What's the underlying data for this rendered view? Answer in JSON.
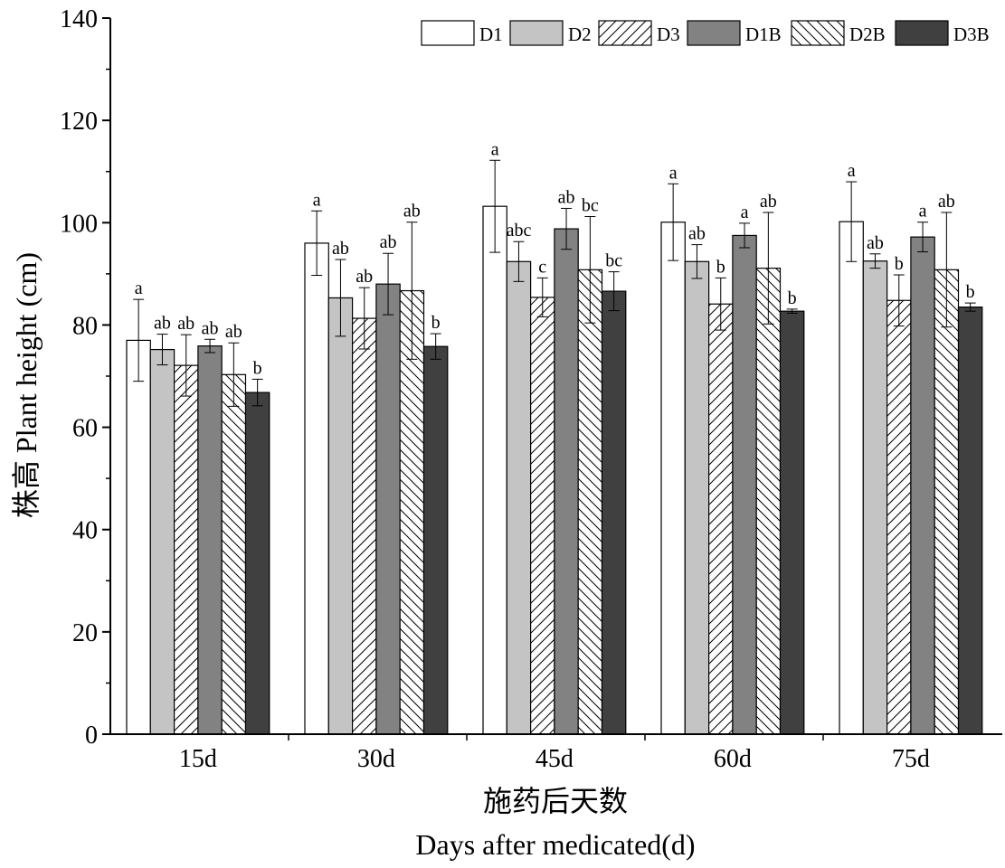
{
  "chart_data": {
    "type": "bar",
    "categories": [
      "15d",
      "30d",
      "45d",
      "60d",
      "75d"
    ],
    "ylabel": "株高 Plant height (cm)",
    "xlabel_cn": "施药后天数",
    "xlabel_en": "Days after medicated(d)",
    "ylim": [
      0,
      140
    ],
    "yticks": [
      0,
      20,
      40,
      60,
      80,
      100,
      120,
      140
    ],
    "legend_position": "top-right",
    "series": [
      {
        "name": "D1",
        "style": "white",
        "values": [
          77,
          96,
          103.2,
          100.1,
          100.2
        ],
        "errors": [
          8,
          6.3,
          9,
          7.5,
          7.8
        ],
        "letters": [
          "a",
          "a",
          "a",
          "a",
          "a"
        ]
      },
      {
        "name": "D2",
        "style": "lightgray",
        "values": [
          75.2,
          85.3,
          92.4,
          92.4,
          92.5
        ],
        "errors": [
          3,
          7.5,
          3.9,
          3.3,
          1.4
        ],
        "letters": [
          "ab",
          "ab",
          "abc",
          "ab",
          "ab"
        ]
      },
      {
        "name": "D3",
        "style": "hatch-forward",
        "values": [
          72.1,
          81.3,
          85.4,
          84.1,
          84.8
        ],
        "errors": [
          6,
          6,
          3.8,
          5.1,
          5
        ],
        "letters": [
          "ab",
          "ab",
          "c",
          "b",
          "b"
        ]
      },
      {
        "name": "D1B",
        "style": "gray",
        "values": [
          75.9,
          88,
          98.8,
          97.5,
          97.2
        ],
        "errors": [
          1.3,
          6,
          4,
          2.4,
          2.9
        ],
        "letters": [
          "ab",
          "ab",
          "ab",
          "a",
          "a"
        ]
      },
      {
        "name": "D2B",
        "style": "hatch-back",
        "values": [
          70.3,
          86.7,
          90.8,
          91.1,
          90.8
        ],
        "errors": [
          6.2,
          13.4,
          10.4,
          10.9,
          11.2
        ],
        "letters": [
          "ab",
          "ab",
          "bc",
          "ab",
          "ab"
        ]
      },
      {
        "name": "D3B",
        "style": "dark",
        "values": [
          66.8,
          75.8,
          86.6,
          82.7,
          83.5
        ],
        "errors": [
          2.6,
          2.5,
          3.8,
          0.4,
          0.8
        ],
        "letters": [
          "b",
          "b",
          "bc",
          "b",
          "b"
        ]
      }
    ]
  },
  "colors": {
    "white": "#ffffff",
    "lightgray": "#c4c4c4",
    "gray": "#828282",
    "dark": "#404040",
    "stroke": "#000000"
  }
}
